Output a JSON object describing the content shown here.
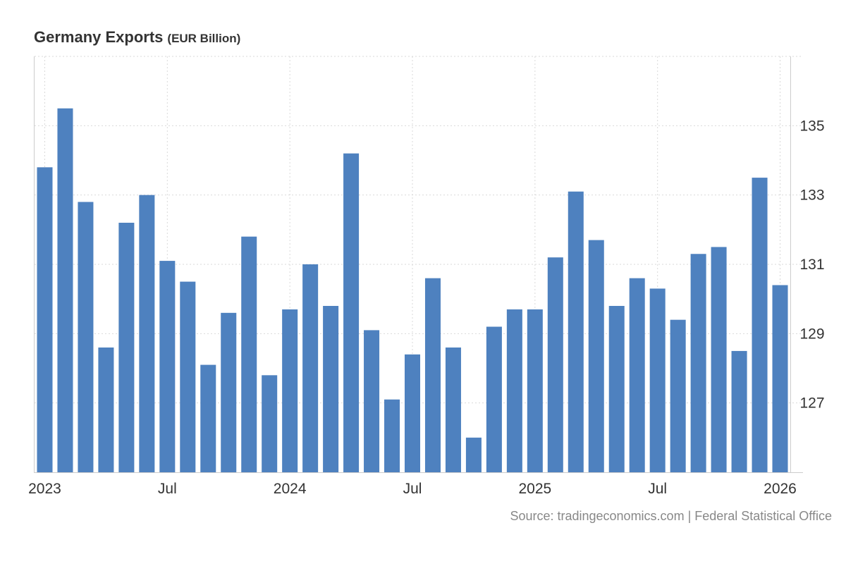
{
  "chart_data": {
    "type": "bar",
    "title": "Germany Exports",
    "subtitle": "(EUR Billion)",
    "source": "Source: tradingeconomics.com | Federal Statistical Office",
    "categories": [
      "2023-01",
      "2023-02",
      "2023-03",
      "2023-04",
      "2023-05",
      "2023-06",
      "2023-07",
      "2023-08",
      "2023-09",
      "2023-10",
      "2023-11",
      "2023-12",
      "2024-01",
      "2024-02",
      "2024-03",
      "2024-04",
      "2024-05",
      "2024-06",
      "2024-07",
      "2024-08",
      "2024-09",
      "2024-10",
      "2024-11",
      "2024-12",
      "2025-01",
      "2025-02",
      "2025-03",
      "2025-04",
      "2025-05",
      "2025-06",
      "2025-07",
      "2025-08",
      "2025-09",
      "2025-10",
      "2025-11",
      "2025-12",
      "2026-01"
    ],
    "values": [
      133.8,
      135.5,
      132.8,
      128.6,
      132.2,
      133.0,
      131.1,
      130.5,
      128.1,
      129.6,
      131.8,
      127.8,
      129.7,
      131.0,
      129.8,
      134.2,
      129.1,
      127.1,
      128.4,
      130.6,
      128.6,
      126.0,
      129.2,
      129.7,
      129.7,
      131.2,
      133.1,
      131.7,
      129.8,
      130.6,
      130.3,
      129.4,
      131.3,
      131.5,
      128.5,
      133.5,
      130.4
    ],
    "ylim": [
      125.0,
      137.0
    ],
    "yticks": [
      127,
      129,
      131,
      133,
      135
    ],
    "xtick_labels": [
      {
        "index": 0,
        "label": "2023"
      },
      {
        "index": 6,
        "label": "Jul"
      },
      {
        "index": 12,
        "label": "2024"
      },
      {
        "index": 18,
        "label": "Jul"
      },
      {
        "index": 24,
        "label": "2025"
      },
      {
        "index": 30,
        "label": "Jul"
      },
      {
        "index": 36,
        "label": "2026"
      }
    ],
    "bar_color": "#4e81bf",
    "grid": true,
    "legend": "none"
  }
}
